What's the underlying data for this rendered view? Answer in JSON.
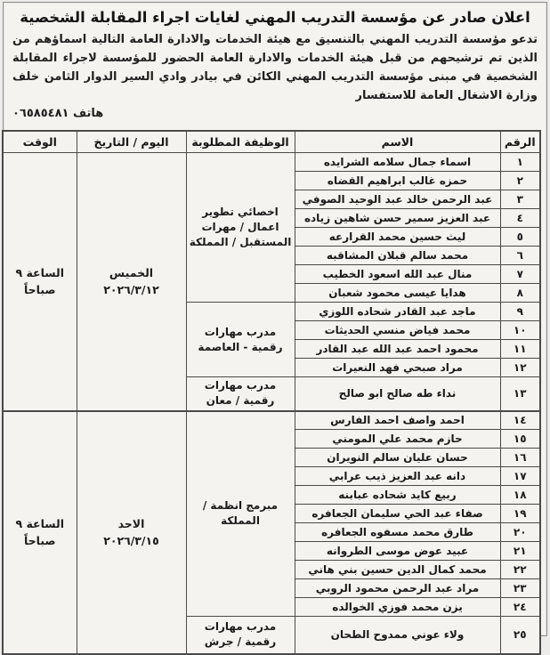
{
  "title": "اعلان صادر عن مؤسسة التدريب المهني لغايات اجراء المقابلة الشخصية",
  "intro": "تدعو مؤسسة التدريب المهني بالتنسيق مع هيئة الخدمات والادارة العامة التالية اسماؤهم من الذين تم ترشيحهم من قبل هيئة الخدمات والادارة العامة الحضور للمؤسسة لاجراء المقابلة الشخصية في مبنى مؤسسة التدريب المهني الكائن في بيادر وادي السير الدوار الثامن خلف وزارة الاشغال العامة للاستفسار",
  "phone_line": "هاتف ٠٦٥٨٥٤٨١",
  "table": {
    "headers": {
      "num": "الرقم",
      "name": "الاسم",
      "job": "الوظيفة المطلوبة",
      "date": "اليوم / التاريخ",
      "time": "الوقت"
    },
    "jobs": [
      "اخصائي تطوير اعمال / مهرات المستقبل / المملكة",
      "مدرب مهارات رقمية - العاصمة",
      "مدرب مهارات رقمية / معان",
      "مبرمج انظمة / المملكة",
      "مدرب مهارات رقمية / جرش"
    ],
    "sessions": [
      {
        "day": "الخميس",
        "date": "٢٠٢٦/٣/١٢",
        "time": "الساعة ٩ صباحاً"
      },
      {
        "day": "الاحد",
        "date": "٢٠٢٦/٣/١٥",
        "time": "الساعة ٩ صباحاً"
      }
    ],
    "rows": [
      {
        "num": "١",
        "name": "اسماء جمال سلامه الشرايده"
      },
      {
        "num": "٢",
        "name": "حمزه غالب ابراهيم القضاه"
      },
      {
        "num": "٣",
        "name": "عبد الرحمن خالد عبد الوحيد الصوفي"
      },
      {
        "num": "٤",
        "name": "عبد العزيز سمير حسن شاهين زياده"
      },
      {
        "num": "٥",
        "name": "ليث حسين محمد القرارعه"
      },
      {
        "num": "٦",
        "name": "محمد سالم قبلان المشاقبه"
      },
      {
        "num": "٧",
        "name": "منال عبد الله اسعود الخطيب"
      },
      {
        "num": "٨",
        "name": "هدايا عيسى محمود شعبان"
      },
      {
        "num": "٩",
        "name": "ماجد عبد القادر شحاده اللوزي"
      },
      {
        "num": "١٠",
        "name": "محمد فياض منسي الحديثات"
      },
      {
        "num": "١١",
        "name": "محمود احمد عبد الله عبد القادر"
      },
      {
        "num": "١٢",
        "name": "مراد صبحي فهد النعيرات"
      },
      {
        "num": "١٣",
        "name": "نداء طه صالح ابو صالح"
      },
      {
        "num": "١٤",
        "name": "احمد واصف احمد الفارس"
      },
      {
        "num": "١٥",
        "name": "حازم محمد علي المومني"
      },
      {
        "num": "١٦",
        "name": "حسان عليان سالم النويران"
      },
      {
        "num": "١٧",
        "name": "دانه عبد العزيز ذيب عرابي"
      },
      {
        "num": "١٨",
        "name": "ربيع كايد شحاده عبابنه"
      },
      {
        "num": "١٩",
        "name": "صفاء عبد الحي سليمان الجعافره"
      },
      {
        "num": "٢٠",
        "name": "طارق محمد مسفوه الجعافره"
      },
      {
        "num": "٢١",
        "name": "عبيد عوض موسى الطروانه"
      },
      {
        "num": "٢٢",
        "name": "محمد كمال الدين حسين بني هاني"
      },
      {
        "num": "٢٣",
        "name": "مراد عبد الرحمن محمود الروبي"
      },
      {
        "num": "٢٤",
        "name": "يزن محمد فوزي الخوالده"
      },
      {
        "num": "٢٥",
        "name": "ولاء عوني ممدوح الطحان"
      }
    ]
  }
}
